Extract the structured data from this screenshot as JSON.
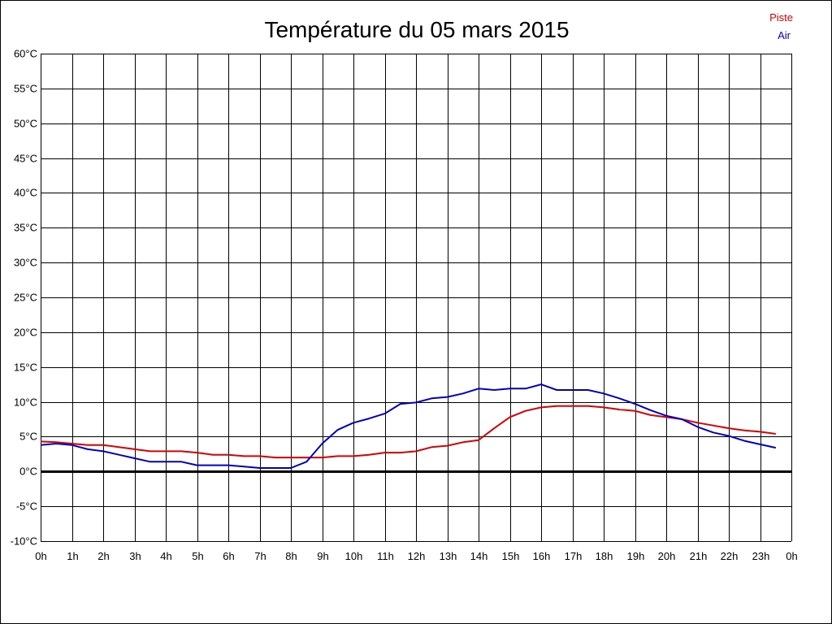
{
  "chart_data": {
    "type": "line",
    "title": "Température du 05 mars 2015",
    "xlabel": "",
    "ylabel": "",
    "x_tick_labels": [
      "0h",
      "1h",
      "2h",
      "3h",
      "4h",
      "5h",
      "6h",
      "7h",
      "8h",
      "9h",
      "10h",
      "11h",
      "12h",
      "13h",
      "14h",
      "15h",
      "16h",
      "17h",
      "18h",
      "19h",
      "20h",
      "21h",
      "22h",
      "23h",
      "0h"
    ],
    "y_ticks": [
      60,
      55,
      50,
      45,
      40,
      35,
      30,
      25,
      20,
      15,
      10,
      5,
      0,
      -5,
      -10
    ],
    "y_tick_labels": [
      "60°C",
      "55°C",
      "50°C",
      "45°C",
      "40°C",
      "35°C",
      "30°C",
      "25°C",
      "20°C",
      "15°C",
      "10°C",
      "5°C",
      "0°C",
      "-5°C",
      "-10°C"
    ],
    "xlim": [
      0,
      24
    ],
    "ylim": [
      -10,
      60
    ],
    "grid": true,
    "zero_line": true,
    "legend_position": "top-right",
    "series": [
      {
        "name": "Piste",
        "color": "#dd0000",
        "x": [
          0,
          0.5,
          1,
          1.5,
          2,
          2.5,
          3,
          3.5,
          4,
          4.5,
          5,
          5.5,
          6,
          6.5,
          7,
          7.5,
          8,
          8.5,
          9,
          9.5,
          10,
          10.5,
          11,
          11.5,
          12,
          12.5,
          13,
          13.5,
          14,
          14.5,
          15,
          15.5,
          16,
          16.5,
          17,
          17.5,
          18,
          18.5,
          19,
          19.5,
          20,
          20.5,
          21,
          21.5,
          22,
          22.5,
          23,
          23.5
        ],
        "values": [
          4.3,
          4.2,
          4.0,
          3.8,
          3.8,
          3.5,
          3.2,
          2.9,
          2.9,
          2.9,
          2.7,
          2.4,
          2.4,
          2.2,
          2.2,
          2.0,
          2.0,
          2.0,
          2.0,
          2.2,
          2.2,
          2.4,
          2.7,
          2.7,
          2.9,
          3.5,
          3.7,
          4.2,
          4.5,
          6.2,
          7.8,
          8.7,
          9.2,
          9.4,
          9.4,
          9.4,
          9.2,
          8.9,
          8.7,
          8.1,
          7.8,
          7.5,
          7.0,
          6.6,
          6.2,
          5.9,
          5.7,
          5.4
        ]
      },
      {
        "name": "Air",
        "color": "#0000cc",
        "x": [
          0,
          0.5,
          1,
          1.5,
          2,
          2.5,
          3,
          3.5,
          4,
          4.5,
          5,
          5.5,
          6,
          6.5,
          7,
          7.5,
          8,
          8.5,
          9,
          9.5,
          10,
          10.5,
          11,
          11.5,
          12,
          12.5,
          13,
          13.5,
          14,
          14.5,
          15,
          15.5,
          16,
          16.5,
          17,
          17.5,
          18,
          18.5,
          19,
          19.5,
          20,
          20.5,
          21,
          21.5,
          22,
          22.5,
          23,
          23.5
        ],
        "values": [
          3.8,
          4.0,
          3.8,
          3.2,
          2.9,
          2.4,
          1.9,
          1.4,
          1.4,
          1.4,
          0.9,
          0.9,
          0.9,
          0.7,
          0.5,
          0.5,
          0.5,
          1.4,
          4.0,
          6.0,
          7.0,
          7.6,
          8.3,
          9.7,
          9.9,
          10.5,
          10.7,
          11.2,
          11.9,
          11.7,
          11.9,
          11.9,
          12.5,
          11.7,
          11.7,
          11.7,
          11.2,
          10.5,
          9.7,
          8.8,
          8.0,
          7.5,
          6.4,
          5.6,
          5.1,
          4.4,
          3.9,
          3.4
        ]
      }
    ]
  }
}
